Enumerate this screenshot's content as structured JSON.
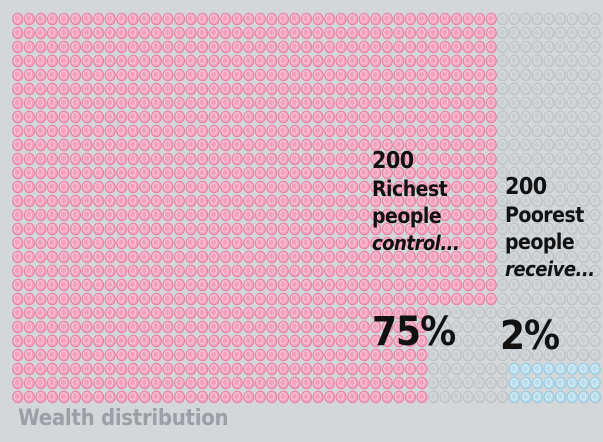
{
  "chart_data": {
    "type": "waffle",
    "title": "Wealth distribution",
    "unit_icon": "coin-icon",
    "colors": {
      "richest": "#f4a1bd",
      "poorest": "#b8dcec",
      "remainder": "#c9ced2",
      "background": "#d3d7da"
    },
    "groups": [
      {
        "key": "richest",
        "count": "200",
        "label_lines": [
          "Richest",
          "people"
        ],
        "verb": "control...",
        "percent_label": "75%",
        "value": 75
      },
      {
        "key": "poorest",
        "count": "200",
        "label_lines": [
          "Poorest",
          "people"
        ],
        "verb": "receive...",
        "percent_label": "2%",
        "value": 2
      }
    ]
  }
}
